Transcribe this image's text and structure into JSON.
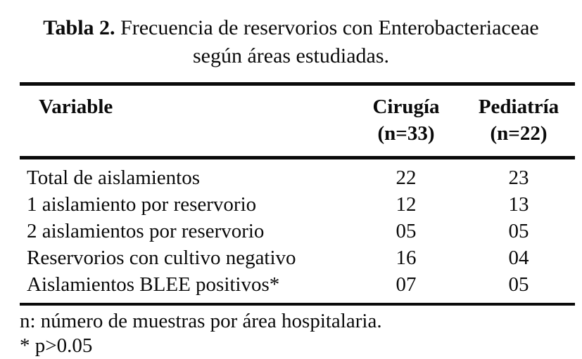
{
  "caption": {
    "label": "Tabla 2.",
    "line1": " Frecuencia de reservorios con Enterobacteriaceae",
    "line2": "según áreas estudiadas."
  },
  "table": {
    "columns": [
      {
        "header": "Variable",
        "subheader": ""
      },
      {
        "header": "Cirugía",
        "subheader": "(n=33)"
      },
      {
        "header": "Pediatría",
        "subheader": "(n=22)"
      }
    ],
    "rows": [
      {
        "variable": "Total de aislamientos",
        "cirugia": "22",
        "pediatria": "23"
      },
      {
        "variable": "1 aislamiento por reservorio",
        "cirugia": "12",
        "pediatria": "13"
      },
      {
        "variable": "2 aislamientos por reservorio",
        "cirugia": "05",
        "pediatria": "05"
      },
      {
        "variable": "Reservorios con cultivo negativo",
        "cirugia": "16",
        "pediatria": "04"
      },
      {
        "variable": "Aislamientos BLEE positivos*",
        "cirugia": "07",
        "pediatria": "05"
      }
    ]
  },
  "footnotes": [
    "n: número de muestras por área hospitalaria.",
    "* p>0.05"
  ],
  "colors": {
    "background": "#ffffff",
    "text": "#0a0a0a",
    "rule": "#0a0a0a"
  }
}
